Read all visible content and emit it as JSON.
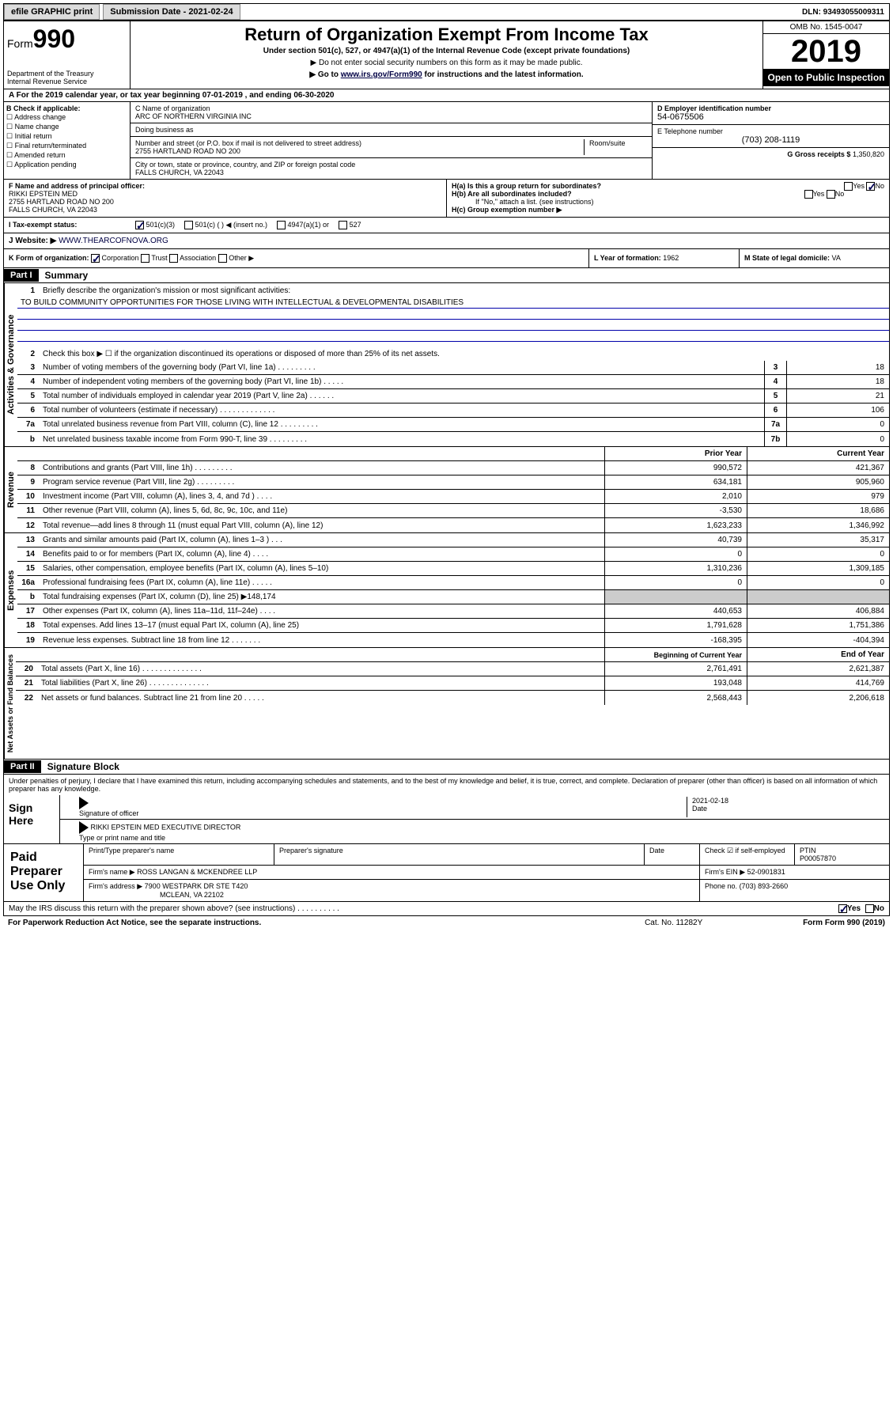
{
  "topbar": {
    "efile": "efile GRAPHIC print",
    "submission": "Submission Date - 2021-02-24",
    "dln": "DLN: 93493055009311"
  },
  "header": {
    "form_label": "Form",
    "form_num": "990",
    "title": "Return of Organization Exempt From Income Tax",
    "sub1": "Under section 501(c), 527, or 4947(a)(1) of the Internal Revenue Code (except private foundations)",
    "sub2": "▶ Do not enter social security numbers on this form as it may be made public.",
    "sub3_pre": "▶ Go to ",
    "sub3_link": "www.irs.gov/Form990",
    "sub3_post": " for instructions and the latest information.",
    "dept": "Department of the Treasury\nInternal Revenue Service",
    "omb": "OMB No. 1545-0047",
    "year": "2019",
    "open": "Open to Public Inspection"
  },
  "period": "A For the 2019 calendar year, or tax year beginning 07-01-2019    , and ending 06-30-2020",
  "section_b": {
    "label": "B Check if applicable:",
    "items": [
      "Address change",
      "Name change",
      "Initial return",
      "Final return/terminated",
      "Amended return",
      "Application pending"
    ]
  },
  "section_c": {
    "name_label": "C Name of organization",
    "name": "ARC OF NORTHERN VIRGINIA INC",
    "dba_label": "Doing business as",
    "dba": "",
    "addr_label": "Number and street (or P.O. box if mail is not delivered to street address)",
    "room_label": "Room/suite",
    "addr": "2755 HARTLAND ROAD NO 200",
    "city_label": "City or town, state or province, country, and ZIP or foreign postal code",
    "city": "FALLS CHURCH, VA  22043"
  },
  "section_d": {
    "ein_label": "D Employer identification number",
    "ein": "54-0675506",
    "tel_label": "E Telephone number",
    "tel": "(703) 208-1119",
    "gross_label": "G Gross receipts $",
    "gross": "1,350,820"
  },
  "section_f": {
    "label": "F Name and address of principal officer:",
    "name": "RIKKI EPSTEIN MED",
    "addr1": "2755 HARTLAND ROAD NO 200",
    "addr2": "FALLS CHURCH, VA  22043"
  },
  "section_h": {
    "ha": "H(a)  Is this a group return for subordinates?",
    "hb": "H(b)  Are all subordinates included?",
    "hb_note": "If \"No,\" attach a list. (see instructions)",
    "hc": "H(c)  Group exemption number ▶",
    "yes": "Yes",
    "no": "No"
  },
  "section_i": {
    "label": "I  Tax-exempt status:",
    "opt1": "501(c)(3)",
    "opt2": "501(c) (   ) ◀ (insert no.)",
    "opt3": "4947(a)(1) or",
    "opt4": "527"
  },
  "section_j": {
    "label": "J   Website: ▶",
    "url": "WWW.THEARCOFNOVA.ORG"
  },
  "section_k": {
    "label": "K Form of organization:",
    "opts": [
      "Corporation",
      "Trust",
      "Association",
      "Other ▶"
    ],
    "l_label": "L Year of formation:",
    "l_val": "1962",
    "m_label": "M State of legal domicile:",
    "m_val": "VA"
  },
  "part1": {
    "hdr": "Part I",
    "title": "Summary",
    "line1": "Briefly describe the organization's mission or most significant activities:",
    "mission": "TO BUILD COMMUNITY OPPORTUNITIES FOR THOSE LIVING WITH INTELLECTUAL & DEVELOPMENTAL DISABILITIES",
    "line2": "Check this box ▶ ☐  if the organization discontinued its operations or disposed of more than 25% of its net assets.",
    "governance_label": "Activities & Governance",
    "revenue_label": "Revenue",
    "expenses_label": "Expenses",
    "netassets_label": "Net Assets or Fund Balances",
    "rows_gov": [
      {
        "n": "3",
        "t": "Number of voting members of the governing body (Part VI, line 1a)   .    .    .    .    .    .    .    .    .",
        "b": "3",
        "v": "18"
      },
      {
        "n": "4",
        "t": "Number of independent voting members of the governing body (Part VI, line 1b)   .    .    .    .    .",
        "b": "4",
        "v": "18"
      },
      {
        "n": "5",
        "t": "Total number of individuals employed in calendar year 2019 (Part V, line 2a)   .    .    .    .    .    .",
        "b": "5",
        "v": "21"
      },
      {
        "n": "6",
        "t": "Total number of volunteers (estimate if necessary)   .    .    .    .    .    .    .    .    .    .    .    .    .",
        "b": "6",
        "v": "106"
      },
      {
        "n": "7a",
        "t": "Total unrelated business revenue from Part VIII, column (C), line 12   .    .    .    .    .    .    .    .    .",
        "b": "7a",
        "v": "0"
      },
      {
        "n": "b",
        "t": "Net unrelated business taxable income from Form 990-T, line 39   .    .    .    .    .    .    .    .    .",
        "b": "7b",
        "v": "0"
      }
    ],
    "prior_hdr": "Prior Year",
    "current_hdr": "Current Year",
    "rows_rev": [
      {
        "n": "8",
        "t": "Contributions and grants (Part VIII, line 1h)   .    .    .    .    .    .    .    .    .",
        "p": "990,572",
        "c": "421,367"
      },
      {
        "n": "9",
        "t": "Program service revenue (Part VIII, line 2g)   .    .    .    .    .    .    .    .    .",
        "p": "634,181",
        "c": "905,960"
      },
      {
        "n": "10",
        "t": "Investment income (Part VIII, column (A), lines 3, 4, and 7d )   .    .    .    .",
        "p": "2,010",
        "c": "979"
      },
      {
        "n": "11",
        "t": "Other revenue (Part VIII, column (A), lines 5, 6d, 8c, 9c, 10c, and 11e)",
        "p": "-3,530",
        "c": "18,686"
      },
      {
        "n": "12",
        "t": "Total revenue—add lines 8 through 11 (must equal Part VIII, column (A), line 12)",
        "p": "1,623,233",
        "c": "1,346,992"
      }
    ],
    "rows_exp": [
      {
        "n": "13",
        "t": "Grants and similar amounts paid (Part IX, column (A), lines 1–3 )   .    .    .",
        "p": "40,739",
        "c": "35,317"
      },
      {
        "n": "14",
        "t": "Benefits paid to or for members (Part IX, column (A), line 4)   .    .    .    .",
        "p": "0",
        "c": "0"
      },
      {
        "n": "15",
        "t": "Salaries, other compensation, employee benefits (Part IX, column (A), lines 5–10)",
        "p": "1,310,236",
        "c": "1,309,185"
      },
      {
        "n": "16a",
        "t": "Professional fundraising fees (Part IX, column (A), line 11e)   .    .    .    .    .",
        "p": "0",
        "c": "0"
      },
      {
        "n": "b",
        "t": "Total fundraising expenses (Part IX, column (D), line 25) ▶148,174",
        "p": "",
        "c": ""
      },
      {
        "n": "17",
        "t": "Other expenses (Part IX, column (A), lines 11a–11d, 11f–24e)   .    .    .    .",
        "p": "440,653",
        "c": "406,884"
      },
      {
        "n": "18",
        "t": "Total expenses. Add lines 13–17 (must equal Part IX, column (A), line 25)",
        "p": "1,791,628",
        "c": "1,751,386"
      },
      {
        "n": "19",
        "t": "Revenue less expenses. Subtract line 18 from line 12   .    .    .    .    .    .    .",
        "p": "-168,395",
        "c": "-404,394"
      }
    ],
    "begin_hdr": "Beginning of Current Year",
    "end_hdr": "End of Year",
    "rows_net": [
      {
        "n": "20",
        "t": "Total assets (Part X, line 16)   .    .    .    .    .    .    .    .    .    .    .    .    .    .",
        "p": "2,761,491",
        "c": "2,621,387"
      },
      {
        "n": "21",
        "t": "Total liabilities (Part X, line 26)   .    .    .    .    .    .    .    .    .    .    .    .    .    .",
        "p": "193,048",
        "c": "414,769"
      },
      {
        "n": "22",
        "t": "Net assets or fund balances. Subtract line 21 from line 20   .    .    .    .    .",
        "p": "2,568,443",
        "c": "2,206,618"
      }
    ]
  },
  "part2": {
    "hdr": "Part II",
    "title": "Signature Block",
    "text": "Under penalties of perjury, I declare that I have examined this return, including accompanying schedules and statements, and to the best of my knowledge and belief, it is true, correct, and complete. Declaration of preparer (other than officer) is based on all information of which preparer has any knowledge.",
    "sign_here": "Sign Here",
    "sig_officer": "Signature of officer",
    "sig_date": "2021-02-18",
    "date_label": "Date",
    "officer_name": "RIKKI EPSTEIN MED  EXECUTIVE DIRECTOR",
    "type_name": "Type or print name and title",
    "paid_label": "Paid Preparer Use Only",
    "prep_name_label": "Print/Type preparer's name",
    "prep_sig_label": "Preparer's signature",
    "prep_date_label": "Date",
    "check_if": "Check ☑ if self-employed",
    "ptin_label": "PTIN",
    "ptin": "P00057870",
    "firm_name_label": "Firm's name    ▶",
    "firm_name": "ROSS LANGAN & MCKENDREE LLP",
    "firm_ein_label": "Firm's EIN ▶",
    "firm_ein": "52-0901831",
    "firm_addr_label": "Firm's address ▶",
    "firm_addr1": "7900 WESTPARK DR STE T420",
    "firm_addr2": "MCLEAN, VA  22102",
    "phone_label": "Phone no.",
    "phone": "(703) 893-2660"
  },
  "bottom": {
    "discuss": "May the IRS discuss this return with the preparer shown above? (see instructions)   .    .    .    .    .    .    .    .    .    .",
    "yes": "Yes",
    "no": "No",
    "paperwork": "For Paperwork Reduction Act Notice, see the separate instructions.",
    "cat": "Cat. No. 11282Y",
    "form": "Form 990 (2019)"
  }
}
